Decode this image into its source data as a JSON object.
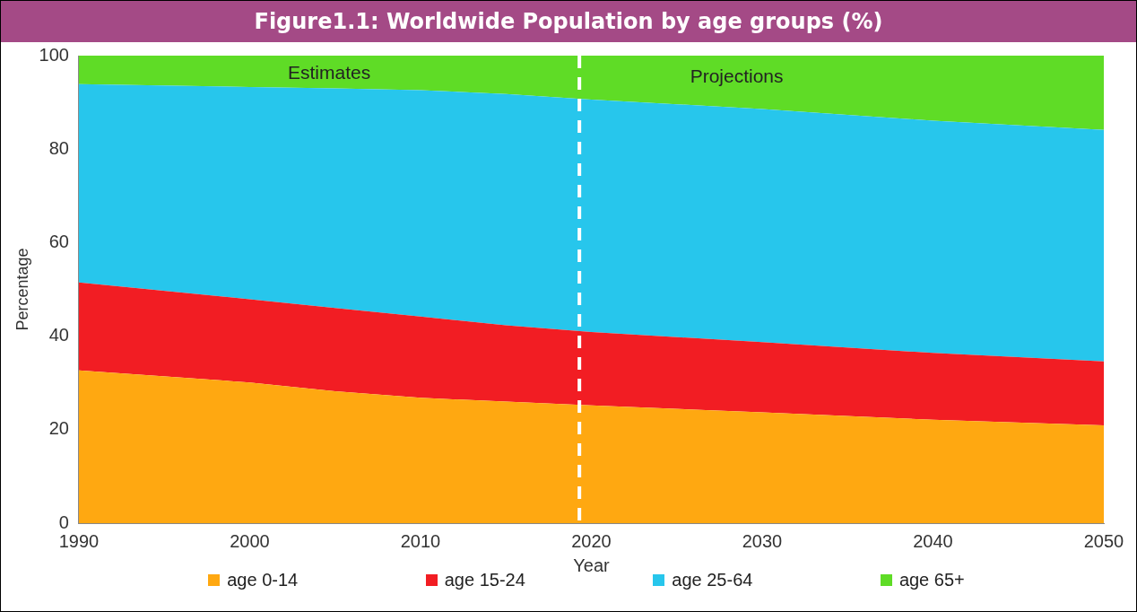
{
  "chart_data": {
    "type": "area",
    "title": "Figure1.1: Worldwide Population by age groups (%)",
    "xlabel": "Year",
    "ylabel": "Percentage",
    "x": [
      1990,
      2000,
      2005,
      2010,
      2015,
      2020,
      2030,
      2040,
      2050
    ],
    "stacked": true,
    "series": [
      {
        "name": "age 0-14",
        "color": "#ffa811",
        "values": [
          32.7,
          30.1,
          28.2,
          26.8,
          26.0,
          25.2,
          23.7,
          22.1,
          20.9
        ]
      },
      {
        "name": "age 15-24",
        "color": "#f21d23",
        "values": [
          18.8,
          17.8,
          17.8,
          17.4,
          16.3,
          15.7,
          15.0,
          14.3,
          13.7
        ]
      },
      {
        "name": "age 25-64",
        "color": "#27c6ec",
        "values": [
          42.4,
          45.4,
          47.0,
          48.4,
          49.5,
          49.7,
          49.9,
          49.7,
          49.5
        ]
      },
      {
        "name": "age 65+",
        "color": "#5fdc26",
        "values": [
          6.1,
          6.7,
          7.0,
          7.4,
          8.2,
          9.4,
          11.4,
          13.9,
          15.9
        ]
      }
    ],
    "xlim": [
      1990,
      2050
    ],
    "xticks": [
      1990,
      2000,
      2010,
      2020,
      2030,
      2040,
      2050
    ],
    "ylim": [
      0,
      100
    ],
    "yticks": [
      0,
      20,
      40,
      60,
      80,
      100
    ],
    "ref_lines": [
      {
        "axis": "x",
        "value": 2019.3,
        "color": "#ffffff",
        "line_style": "dashed"
      }
    ],
    "annotations": [
      "Estimates",
      "Projections"
    ],
    "grid": false,
    "legend": "bottom"
  }
}
